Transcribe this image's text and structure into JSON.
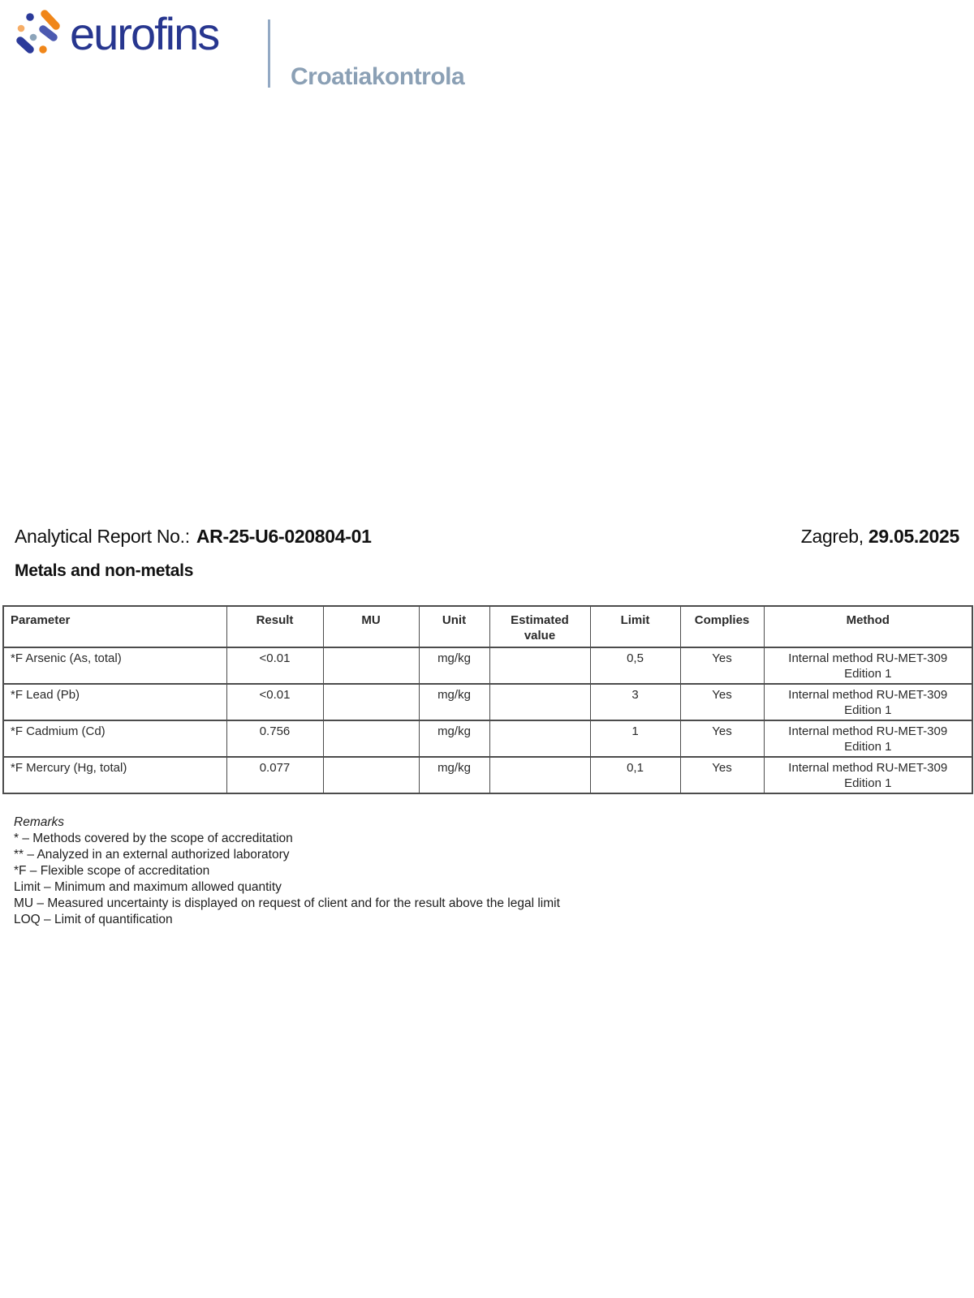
{
  "logo": {
    "brand": "eurofins",
    "division": "Croatiakontrola",
    "colors": {
      "brand_blue": "#27368f",
      "division_gray_blue": "#8ba0b5",
      "divider_blue_gray": "#93a9c4",
      "dot_dark_blue": "#2b3a9a",
      "dot_mid_blue": "#4c5ab0",
      "dot_light_blue": "#8ca4ba",
      "dot_orange": "#f08619",
      "dot_light_orange": "#f6ad66"
    }
  },
  "report_header": {
    "title_label": "Analytical Report No.:",
    "report_number": "AR-25-U6-020804-01",
    "city_label": "Zagreb,",
    "date": "29.05.2025"
  },
  "section": {
    "title": "Metals and non-metals"
  },
  "results_table": {
    "columns": [
      "Parameter",
      "Result",
      "MU",
      "Unit",
      "Estimated\nvalue",
      "Limit",
      "Complies",
      "Method"
    ],
    "rows": [
      {
        "parameter": "*F Arsenic (As, total)",
        "result": "<0.01",
        "mu": "",
        "unit": "mg/kg",
        "estimated_value": "",
        "limit": "0,5",
        "complies": "Yes",
        "method_line1": "Internal method RU-MET-309",
        "method_line2": "Edition 1"
      },
      {
        "parameter": "*F Lead (Pb)",
        "result": "<0.01",
        "mu": "",
        "unit": "mg/kg",
        "estimated_value": "",
        "limit": "3",
        "complies": "Yes",
        "method_line1": "Internal method RU-MET-309",
        "method_line2": "Edition 1"
      },
      {
        "parameter": "*F Cadmium (Cd)",
        "result": "0.756",
        "mu": "",
        "unit": "mg/kg",
        "estimated_value": "",
        "limit": "1",
        "complies": "Yes",
        "method_line1": "Internal method RU-MET-309",
        "method_line2": "Edition 1"
      },
      {
        "parameter": "*F Mercury (Hg, total)",
        "result": "0.077",
        "mu": "",
        "unit": "mg/kg",
        "estimated_value": "",
        "limit": "0,1",
        "complies": "Yes",
        "method_line1": "Internal method RU-MET-309",
        "method_line2": "Edition 1"
      }
    ]
  },
  "remarks": {
    "heading": "Remarks",
    "lines": [
      "* – Methods covered by the scope of accreditation",
      "** – Analyzed in an external authorized laboratory",
      "*F – Flexible scope of accreditation",
      "Limit – Minimum and maximum allowed quantity",
      "MU – Measured uncertainty is displayed on request of client and for the result above the legal limit",
      "LOQ – Limit of quantification"
    ]
  }
}
